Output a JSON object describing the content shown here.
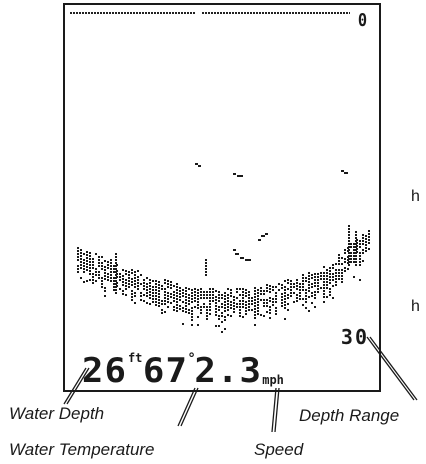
{
  "screen": {
    "range_top": "0",
    "range_bottom": "30",
    "depth_value": "26",
    "depth_unit": "ft",
    "temp_value": "67",
    "temp_unit": "°",
    "speed_value": "2.3",
    "speed_unit": "mph"
  },
  "callouts": {
    "water_depth": "Water Depth",
    "water_temperature": "Water Temperature",
    "speed": "Speed",
    "depth_range": "Depth Range"
  },
  "edge_fragments": [
    "h",
    "h"
  ],
  "colors": {
    "lcd_ink": "#1a1a1a",
    "background": "#ffffff"
  }
}
